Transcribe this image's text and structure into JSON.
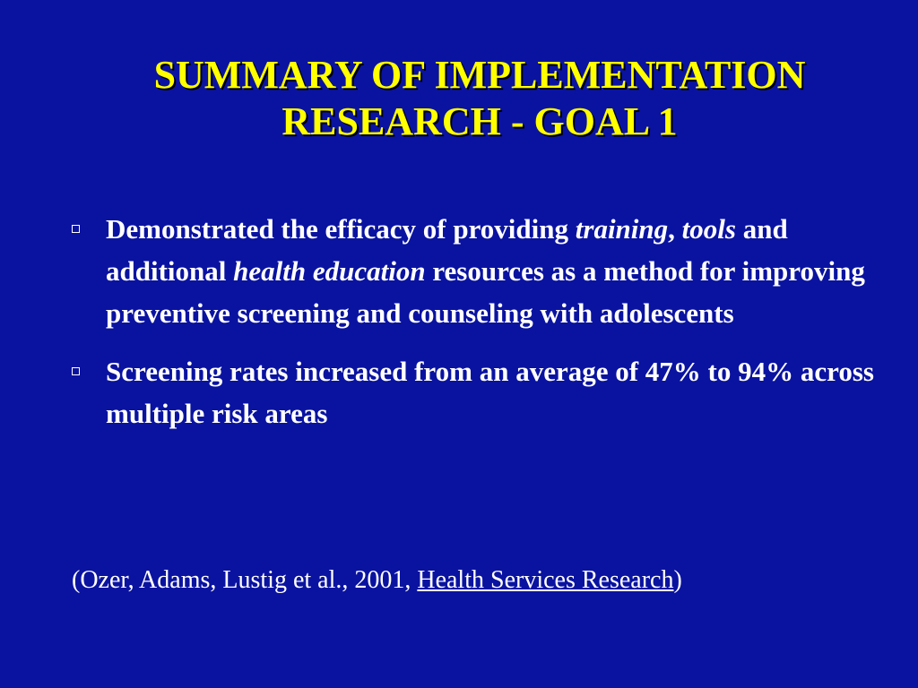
{
  "title": {
    "line1": "SUMMARY OF IMPLEMENTATION",
    "line2": "RESEARCH - GOAL 1"
  },
  "bullets": [
    {
      "seg1": "Demonstrated the efficacy of providing ",
      "em1": "training",
      "seg2": ", ",
      "em2": "tools",
      "seg3": " and additional ",
      "em3": "health education",
      "seg4": " resources as a method for improving preventive screening and counseling with adolescents"
    },
    {
      "text": "Screening rates increased from an average of 47% to 94% across multiple risk areas"
    }
  ],
  "citation": {
    "prefix": "(Ozer, Adams, Lustig et al., 2001, ",
    "journal": "Health Services Research",
    "suffix": ")"
  },
  "colors": {
    "background": "#0a13a0",
    "title": "#ffff00",
    "text": "#ffffff"
  },
  "icons": {
    "bullet": "hollow-square-icon"
  }
}
